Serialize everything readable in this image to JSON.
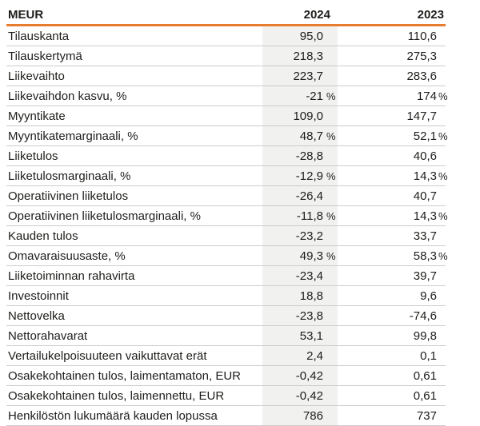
{
  "colors": {
    "accent": "#e87c2e",
    "column_highlight": "#f1f1ef",
    "divider": "#cccccc",
    "text": "#1d1d1b"
  },
  "header": {
    "meur": "MEUR",
    "y2024": "2024",
    "y2023": "2023"
  },
  "table": {
    "rows": [
      {
        "label": "Tilauskanta",
        "v2024": "95,0",
        "v2023": "110,6",
        "u": ""
      },
      {
        "label": "Tilauskertymä",
        "v2024": "218,3",
        "v2023": "275,3",
        "u": ""
      },
      {
        "label": "Liikevaihto",
        "v2024": "223,7",
        "v2023": "283,6",
        "u": ""
      },
      {
        "label": "Liikevaihdon kasvu, %",
        "v2024": "-21",
        "v2023": "174",
        "u": "%"
      },
      {
        "label": "Myyntikate",
        "v2024": "109,0",
        "v2023": "147,7",
        "u": ""
      },
      {
        "label": "Myyntikatemarginaali, %",
        "v2024": "48,7",
        "v2023": "52,1",
        "u": "%"
      },
      {
        "label": "Liiketulos",
        "v2024": "-28,8",
        "v2023": "40,6",
        "u": ""
      },
      {
        "label": "Liiketulosmarginaali, %",
        "v2024": "-12,9",
        "v2023": "14,3",
        "u": "%"
      },
      {
        "label": "Operatiivinen liiketulos",
        "v2024": "-26,4",
        "v2023": "40,7",
        "u": ""
      },
      {
        "label": "Operatiivinen liiketulosmarginaali, %",
        "v2024": "-11,8",
        "v2023": "14,3",
        "u": "%"
      },
      {
        "label": "Kauden tulos",
        "v2024": "-23,2",
        "v2023": "33,7",
        "u": ""
      },
      {
        "label": "Omavaraisuusaste, %",
        "v2024": "49,3",
        "v2023": "58,3",
        "u": "%"
      },
      {
        "label": "Liiketoiminnan rahavirta",
        "v2024": "-23,4",
        "v2023": "39,7",
        "u": ""
      },
      {
        "label": "Investoinnit",
        "v2024": "18,8",
        "v2023": "9,6",
        "u": ""
      },
      {
        "label": "Nettovelka",
        "v2024": "-23,8",
        "v2023": "-74,6",
        "u": ""
      },
      {
        "label": "Nettorahavarat",
        "v2024": "53,1",
        "v2023": "99,8",
        "u": ""
      },
      {
        "label": "Vertailukelpoisuuteen vaikuttavat erät",
        "v2024": "2,4",
        "v2023": "0,1",
        "u": ""
      },
      {
        "label": "Osakekohtainen tulos, laimentamaton, EUR",
        "v2024": "-0,42",
        "v2023": "0,61",
        "u": ""
      },
      {
        "label": "Osakekohtainen tulos, laimennettu, EUR",
        "v2024": "-0,42",
        "v2023": "0,61",
        "u": ""
      },
      {
        "label": "Henkilöstön lukumäärä kauden lopussa",
        "v2024": "786",
        "v2023": "737",
        "u": ""
      }
    ]
  }
}
